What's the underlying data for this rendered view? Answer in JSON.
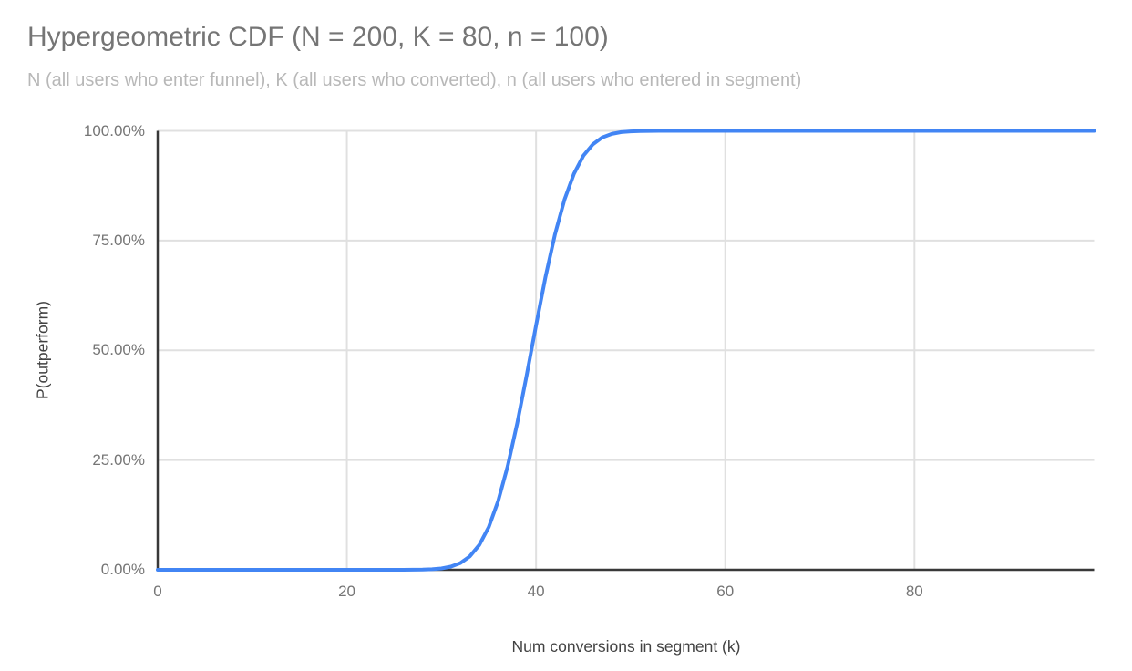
{
  "chart_data": {
    "type": "line",
    "title": "Hypergeometric CDF (N = 200, K = 80, n = 100)",
    "subtitle": "N (all users who enter funnel), K (all users who converted), n (all users who entered in segment)",
    "xlabel": "Num conversions in segment (k)",
    "ylabel": "P(outperform)",
    "xlim": [
      0,
      99
    ],
    "ylim": [
      0,
      1
    ],
    "grid": true,
    "legend": "none",
    "line_color": "#4285f4",
    "gridline_color": "#e0e0e0",
    "axis_line_color": "#383838",
    "x_ticks": [
      {
        "value": 0,
        "label": "0"
      },
      {
        "value": 20,
        "label": "20"
      },
      {
        "value": 40,
        "label": "40"
      },
      {
        "value": 60,
        "label": "60"
      },
      {
        "value": 80,
        "label": "80"
      }
    ],
    "y_ticks": [
      {
        "value": 0,
        "label": "0.00%"
      },
      {
        "value": 0.25,
        "label": "25.00%"
      },
      {
        "value": 0.5,
        "label": "50.00%"
      },
      {
        "value": 0.75,
        "label": "75.00%"
      },
      {
        "value": 1,
        "label": "100.00%"
      }
    ],
    "series": [
      {
        "name": "P(outperform)",
        "x_start": 0,
        "x_step": 1,
        "values": [
          0,
          0,
          0,
          0,
          0,
          0,
          0,
          0,
          0,
          0,
          0,
          0,
          0,
          0,
          0,
          0,
          0,
          0,
          0,
          0,
          0,
          0,
          0,
          0,
          4e-06,
          1.5e-05,
          5e-05,
          0.00016,
          0.00046,
          0.0012,
          0.0031,
          0.0072,
          0.0154,
          0.0307,
          0.0567,
          0.0977,
          0.157,
          0.236,
          0.333,
          0.4426,
          0.5574,
          0.667,
          0.764,
          0.843,
          0.902,
          0.943,
          0.969,
          0.985,
          0.993,
          0.997,
          0.9987,
          0.9995,
          0.9998,
          0.99995,
          0.99998,
          1,
          1,
          1,
          1,
          1,
          1,
          1,
          1,
          1,
          1,
          1,
          1,
          1,
          1,
          1,
          1,
          1,
          1,
          1,
          1,
          1,
          1,
          1,
          1,
          1,
          1,
          1,
          1,
          1,
          1,
          1,
          1,
          1,
          1,
          1,
          1,
          1,
          1,
          1,
          1,
          1,
          1,
          1,
          1,
          1
        ]
      }
    ]
  }
}
